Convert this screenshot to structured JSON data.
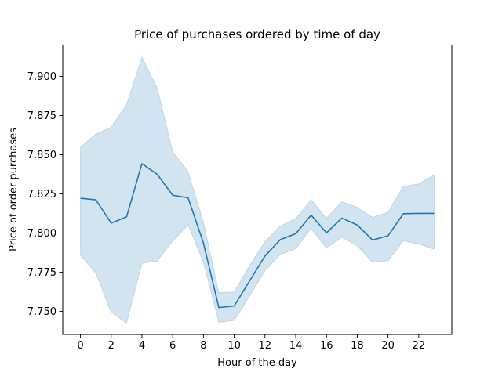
{
  "chart_data": {
    "type": "line",
    "title": "Price of purchases ordered by time of day",
    "xlabel": "Hour of the day",
    "ylabel": "Price of order purchases",
    "xlim": [
      -1.15,
      24.15
    ],
    "ylim": [
      7.7352,
      7.92
    ],
    "xticks": [
      0,
      2,
      4,
      6,
      8,
      10,
      12,
      14,
      16,
      18,
      20,
      22
    ],
    "yticks": [
      7.75,
      7.775,
      7.8,
      7.825,
      7.85,
      7.875,
      7.9
    ],
    "ytick_labels": [
      "7.750",
      "7.775",
      "7.800",
      "7.825",
      "7.850",
      "7.875",
      "7.900"
    ],
    "grid": false,
    "line_color": "#1f77b4",
    "band_color": "#1f77b4",
    "x": [
      0,
      1,
      2,
      3,
      4,
      5,
      6,
      7,
      8,
      9,
      10,
      11,
      12,
      13,
      14,
      15,
      16,
      17,
      18,
      19,
      20,
      21,
      22,
      23
    ],
    "series": [
      {
        "values": [
          7.8222,
          7.8212,
          7.8063,
          7.8103,
          7.8443,
          7.8374,
          7.8241,
          7.8225,
          7.7935,
          7.7524,
          7.7534,
          7.7694,
          7.7853,
          7.7958,
          7.7995,
          7.8114,
          7.8001,
          7.8095,
          7.8051,
          7.7955,
          7.7982,
          7.8123,
          7.8125,
          7.8125
        ],
        "ci_lower": [
          7.7858,
          7.7745,
          7.7493,
          7.7425,
          7.7805,
          7.7822,
          7.7949,
          7.8052,
          7.7814,
          7.7429,
          7.7442,
          7.7597,
          7.7759,
          7.7863,
          7.7899,
          7.8029,
          7.7904,
          7.7972,
          7.7918,
          7.7813,
          7.7823,
          7.7949,
          7.7931,
          7.7896
        ],
        "ci_upper": [
          7.8548,
          7.8632,
          7.8676,
          7.8819,
          7.9123,
          7.8923,
          7.852,
          7.8391,
          7.8069,
          7.7618,
          7.7623,
          7.7792,
          7.7945,
          7.8045,
          7.8092,
          7.8213,
          7.8094,
          7.8199,
          7.8164,
          7.8099,
          7.8132,
          7.8299,
          7.8313,
          7.8371
        ]
      }
    ]
  }
}
